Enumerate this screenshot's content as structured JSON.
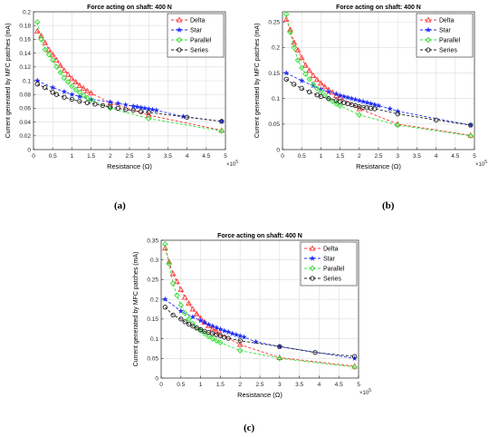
{
  "figure": {
    "panels": [
      {
        "caption": "(a)"
      },
      {
        "caption": "(b)"
      },
      {
        "caption": "(c)"
      }
    ]
  },
  "chart_data": [
    {
      "type": "line",
      "title": "Force acting on shaft: 400 N",
      "xlabel": "Resistance (Ω)",
      "ylabel": "Current generated by MFC patches (mA)",
      "x_multiplier_label": "×10",
      "x_multiplier_exp": "5",
      "xlim": [
        0,
        5
      ],
      "ylim": [
        0,
        0.2
      ],
      "x_ticks": [
        "0",
        "0.5",
        "1",
        "1.5",
        "2",
        "2.5",
        "3",
        "3.5",
        "4",
        "4.5",
        "5"
      ],
      "y_ticks": [
        "0",
        "0.02",
        "0.04",
        "0.06",
        "0.08",
        "0.1",
        "0.12",
        "0.14",
        "0.16",
        "0.18",
        "0.2"
      ],
      "grid": true,
      "legend_position": "top-right",
      "series": [
        {
          "name": "Delta",
          "color": "#ff3333",
          "marker": "triangle",
          "x": [
            0.1,
            0.2,
            0.3,
            0.4,
            0.5,
            0.6,
            0.7,
            0.8,
            0.9,
            1.0,
            1.1,
            1.2,
            1.3,
            1.4,
            1.5,
            2.0,
            3.0,
            4.9
          ],
          "y": [
            0.172,
            0.165,
            0.155,
            0.145,
            0.138,
            0.13,
            0.122,
            0.115,
            0.109,
            0.103,
            0.098,
            0.093,
            0.089,
            0.085,
            0.082,
            0.068,
            0.05,
            0.028
          ]
        },
        {
          "name": "Star",
          "color": "#1f2ff2",
          "marker": "star",
          "x": [
            0.1,
            0.5,
            0.8,
            1.0,
            1.2,
            1.5,
            2.0,
            2.2,
            2.4,
            2.6,
            2.7,
            2.8,
            2.9,
            3.0,
            3.1,
            3.2,
            3.9,
            4.9
          ],
          "y": [
            0.1,
            0.09,
            0.084,
            0.08,
            0.077,
            0.073,
            0.069,
            0.067,
            0.065,
            0.063,
            0.062,
            0.061,
            0.06,
            0.059,
            0.058,
            0.057,
            0.048,
            0.041
          ]
        },
        {
          "name": "Parallel",
          "color": "#33dd33",
          "marker": "diamond",
          "x": [
            0.1,
            0.2,
            0.3,
            0.4,
            0.5,
            0.6,
            0.7,
            0.8,
            0.9,
            1.0,
            1.1,
            1.2,
            1.3,
            1.4,
            1.5,
            2.0,
            3.0,
            4.9
          ],
          "y": [
            0.185,
            0.16,
            0.145,
            0.138,
            0.13,
            0.12,
            0.112,
            0.104,
            0.098,
            0.092,
            0.087,
            0.083,
            0.079,
            0.075,
            0.072,
            0.06,
            0.045,
            0.027
          ]
        },
        {
          "name": "Series",
          "color": "#222222",
          "marker": "circle",
          "x": [
            0.1,
            0.3,
            0.5,
            0.6,
            0.8,
            1.0,
            1.2,
            1.4,
            1.6,
            1.8,
            2.0,
            2.2,
            2.4,
            2.6,
            2.8,
            3.0,
            4.0,
            4.9
          ],
          "y": [
            0.095,
            0.09,
            0.083,
            0.08,
            0.076,
            0.073,
            0.07,
            0.068,
            0.066,
            0.064,
            0.062,
            0.06,
            0.058,
            0.057,
            0.055,
            0.054,
            0.047,
            0.041
          ]
        }
      ]
    },
    {
      "type": "line",
      "title": "Force acting on shaft: 400 N",
      "xlabel": "Resistance (Ω)",
      "ylabel": "Current generated by MFC patches (mA)",
      "x_multiplier_label": "×10",
      "x_multiplier_exp": "5",
      "xlim": [
        0,
        5
      ],
      "ylim": [
        0,
        0.27
      ],
      "x_ticks": [
        "0",
        "0.5",
        "1",
        "1.5",
        "2",
        "2.5",
        "3",
        "3.5",
        "4",
        "4.5",
        "5"
      ],
      "y_ticks": [
        "0",
        "0.05",
        "0.1",
        "0.15",
        "0.2",
        "0.25"
      ],
      "y_tick_values": [
        0,
        0.05,
        0.1,
        0.15,
        0.2,
        0.25
      ],
      "grid": true,
      "legend_position": "top-right",
      "series": [
        {
          "name": "Delta",
          "color": "#ff3333",
          "marker": "triangle",
          "x": [
            0.1,
            0.2,
            0.3,
            0.4,
            0.5,
            0.6,
            0.7,
            0.8,
            0.9,
            1.0,
            1.1,
            1.2,
            1.3,
            1.4,
            1.5,
            2.0,
            3.0,
            4.9
          ],
          "y": [
            0.255,
            0.235,
            0.21,
            0.195,
            0.18,
            0.165,
            0.155,
            0.145,
            0.137,
            0.13,
            0.123,
            0.117,
            0.112,
            0.106,
            0.102,
            0.08,
            0.05,
            0.028
          ]
        },
        {
          "name": "Star",
          "color": "#1f2ff2",
          "marker": "star",
          "x": [
            0.1,
            0.5,
            0.8,
            1.0,
            1.2,
            1.4,
            1.5,
            1.6,
            1.7,
            1.8,
            1.9,
            2.0,
            2.1,
            2.2,
            2.3,
            2.4,
            2.5,
            2.8,
            3.0,
            4.9
          ],
          "y": [
            0.15,
            0.135,
            0.125,
            0.118,
            0.113,
            0.109,
            0.106,
            0.104,
            0.102,
            0.1,
            0.098,
            0.096,
            0.094,
            0.092,
            0.09,
            0.088,
            0.086,
            0.08,
            0.075,
            0.048
          ]
        },
        {
          "name": "Parallel",
          "color": "#33dd33",
          "marker": "diamond",
          "x": [
            0.1,
            0.2,
            0.3,
            0.4,
            0.5,
            0.6,
            0.7,
            0.8,
            0.9,
            1.0,
            1.1,
            1.2,
            1.3,
            1.4,
            1.5,
            2.0,
            3.0,
            4.9
          ],
          "y": [
            0.265,
            0.23,
            0.2,
            0.175,
            0.16,
            0.148,
            0.138,
            0.128,
            0.12,
            0.113,
            0.106,
            0.1,
            0.095,
            0.09,
            0.086,
            0.068,
            0.048,
            0.027
          ]
        },
        {
          "name": "Series",
          "color": "#222222",
          "marker": "circle",
          "x": [
            0.1,
            0.3,
            0.5,
            0.7,
            0.9,
            1.0,
            1.2,
            1.4,
            1.5,
            1.6,
            1.7,
            1.8,
            1.9,
            2.0,
            2.1,
            2.2,
            2.3,
            2.4,
            3.0,
            4.0,
            4.9
          ],
          "y": [
            0.138,
            0.128,
            0.12,
            0.113,
            0.107,
            0.104,
            0.1,
            0.096,
            0.094,
            0.092,
            0.09,
            0.088,
            0.086,
            0.084,
            0.083,
            0.082,
            0.081,
            0.08,
            0.07,
            0.058,
            0.048
          ]
        }
      ]
    },
    {
      "type": "line",
      "title": "Force acting on shaft: 400 N",
      "xlabel": "Resistance (Ω)",
      "ylabel": "Current generated by MFC patches (mA)",
      "x_multiplier_label": "×10",
      "x_multiplier_exp": "5",
      "xlim": [
        0,
        5
      ],
      "ylim": [
        0,
        0.35
      ],
      "x_ticks": [
        "0",
        "0.5",
        "1",
        "1.5",
        "2",
        "2.5",
        "3",
        "3.5",
        "4",
        "4.5",
        "5"
      ],
      "y_ticks": [
        "0",
        "0.05",
        "0.1",
        "0.15",
        "0.2",
        "0.25",
        "0.3",
        "0.35"
      ],
      "y_tick_values": [
        0,
        0.05,
        0.1,
        0.15,
        0.2,
        0.25,
        0.3,
        0.35
      ],
      "grid": true,
      "legend_position": "top-right",
      "series": [
        {
          "name": "Delta",
          "color": "#ff3333",
          "marker": "triangle",
          "x": [
            0.1,
            0.2,
            0.3,
            0.4,
            0.5,
            0.6,
            0.7,
            0.8,
            0.9,
            1.0,
            1.1,
            1.2,
            1.3,
            1.4,
            1.5,
            2.0,
            3.0,
            4.9
          ],
          "y": [
            0.33,
            0.295,
            0.265,
            0.245,
            0.225,
            0.205,
            0.19,
            0.175,
            0.163,
            0.152,
            0.142,
            0.133,
            0.125,
            0.118,
            0.112,
            0.085,
            0.052,
            0.03
          ]
        },
        {
          "name": "Star",
          "color": "#1f2ff2",
          "marker": "star",
          "x": [
            0.1,
            0.5,
            0.8,
            1.0,
            1.1,
            1.2,
            1.3,
            1.4,
            1.5,
            1.6,
            1.7,
            1.8,
            1.9,
            2.0,
            2.1,
            2.4,
            3.0,
            4.9
          ],
          "y": [
            0.2,
            0.17,
            0.155,
            0.146,
            0.141,
            0.136,
            0.132,
            0.128,
            0.124,
            0.12,
            0.117,
            0.113,
            0.11,
            0.107,
            0.104,
            0.092,
            0.08,
            0.05
          ]
        },
        {
          "name": "Parallel",
          "color": "#33dd33",
          "marker": "diamond",
          "x": [
            0.1,
            0.2,
            0.3,
            0.4,
            0.5,
            0.6,
            0.7,
            0.8,
            0.9,
            1.0,
            1.1,
            1.2,
            1.3,
            1.4,
            1.5,
            2.0,
            3.0,
            4.9
          ],
          "y": [
            0.34,
            0.29,
            0.24,
            0.21,
            0.185,
            0.165,
            0.15,
            0.138,
            0.128,
            0.12,
            0.113,
            0.106,
            0.1,
            0.095,
            0.09,
            0.07,
            0.05,
            0.028
          ]
        },
        {
          "name": "Series",
          "color": "#222222",
          "marker": "circle",
          "x": [
            0.1,
            0.3,
            0.5,
            0.6,
            0.7,
            0.8,
            0.9,
            1.0,
            1.1,
            1.2,
            1.3,
            1.4,
            1.5,
            1.6,
            1.7,
            2.0,
            3.0,
            3.9,
            4.9
          ],
          "y": [
            0.18,
            0.16,
            0.15,
            0.143,
            0.137,
            0.132,
            0.127,
            0.123,
            0.119,
            0.116,
            0.113,
            0.11,
            0.107,
            0.104,
            0.101,
            0.095,
            0.08,
            0.065,
            0.055
          ]
        }
      ]
    }
  ]
}
